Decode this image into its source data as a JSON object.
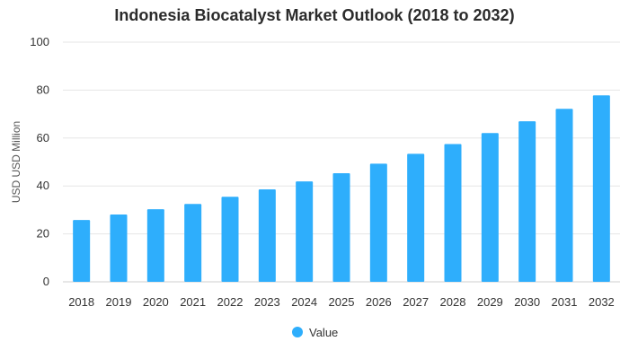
{
  "chart_data": {
    "type": "bar",
    "title": "Indonesia Biocatalyst Market Outlook (2018 to 2032)",
    "xlabel": "",
    "ylabel": "USD USD Million",
    "ylim": [
      0,
      100
    ],
    "yticks": [
      0,
      20,
      40,
      60,
      80,
      100
    ],
    "grid": true,
    "legend_position": "bottom",
    "categories": [
      "2018",
      "2019",
      "2020",
      "2021",
      "2022",
      "2023",
      "2024",
      "2025",
      "2026",
      "2027",
      "2028",
      "2029",
      "2030",
      "2031",
      "2032"
    ],
    "series": [
      {
        "name": "Value",
        "color": "#2eaefc",
        "values": [
          25.8,
          28.1,
          30.3,
          32.5,
          35.5,
          38.6,
          41.9,
          45.3,
          49.3,
          53.4,
          57.5,
          62.1,
          67.0,
          72.2,
          77.8
        ]
      }
    ]
  }
}
